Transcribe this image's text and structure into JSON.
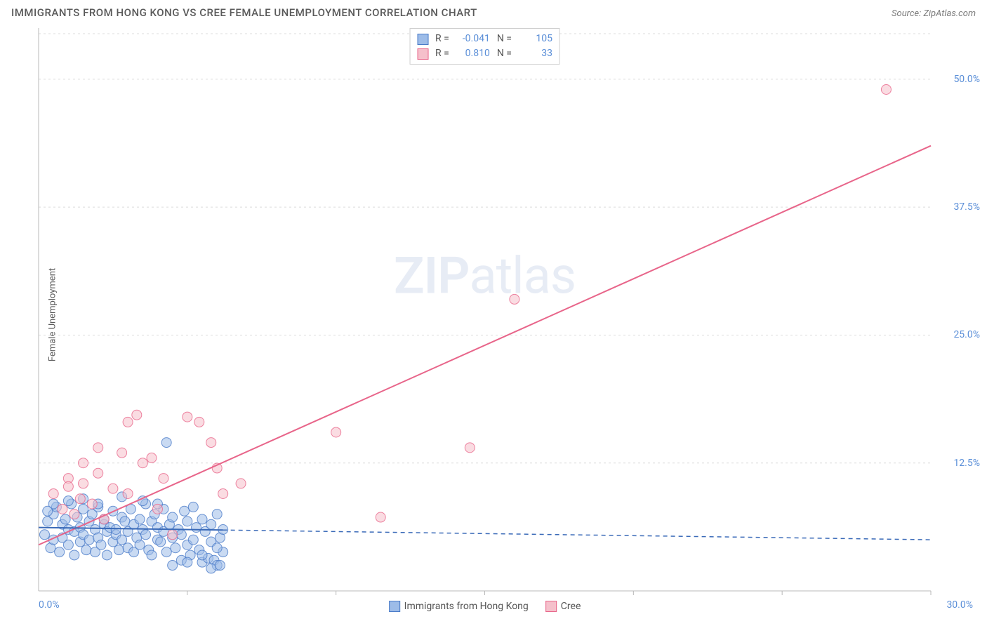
{
  "header": {
    "title": "IMMIGRANTS FROM HONG KONG VS CREE FEMALE UNEMPLOYMENT CORRELATION CHART",
    "source_prefix": "Source: ",
    "source": "ZipAtlas.com"
  },
  "chart": {
    "type": "scatter",
    "ylabel": "Female Unemployment",
    "xlim": [
      0,
      30
    ],
    "ylim": [
      0,
      55
    ],
    "xtick_labels": {
      "min": "0.0%",
      "max": "30.0%"
    },
    "ytick_positions": [
      12.5,
      25.0,
      37.5,
      50.0
    ],
    "ytick_labels": [
      "12.5%",
      "25.0%",
      "37.5%",
      "50.0%"
    ],
    "minor_xticks": [
      5,
      10,
      15,
      20,
      25,
      30
    ],
    "background_color": "#ffffff",
    "grid_color": "#dcdcdc",
    "axis_color": "#b8b8b8",
    "marker_radius": 7,
    "marker_opacity": 0.55,
    "line_width": 2,
    "dash_pattern": "6,5",
    "watermark": {
      "zip": "ZIP",
      "atlas": "atlas"
    },
    "series": {
      "blue": {
        "label": "Immigrants from Hong Kong",
        "fill_color": "#9dbce8",
        "stroke_color": "#4a7bc8",
        "line_color": "#3a6ab8",
        "trend": {
          "x1": 0,
          "y1": 6.2,
          "x2": 30,
          "y2": 5.0,
          "extrapolate_from_x": 6.2
        },
        "points": [
          [
            0.2,
            5.5
          ],
          [
            0.3,
            6.8
          ],
          [
            0.4,
            4.2
          ],
          [
            0.5,
            7.5
          ],
          [
            0.5,
            5.0
          ],
          [
            0.6,
            8.2
          ],
          [
            0.7,
            3.8
          ],
          [
            0.8,
            6.5
          ],
          [
            0.8,
            5.2
          ],
          [
            0.9,
            7.0
          ],
          [
            1.0,
            4.5
          ],
          [
            1.0,
            6.0
          ],
          [
            1.1,
            8.5
          ],
          [
            1.2,
            5.8
          ],
          [
            1.2,
            3.5
          ],
          [
            1.3,
            7.2
          ],
          [
            1.4,
            4.8
          ],
          [
            1.4,
            6.2
          ],
          [
            1.5,
            5.5
          ],
          [
            1.5,
            8.0
          ],
          [
            1.6,
            4.0
          ],
          [
            1.7,
            6.8
          ],
          [
            1.7,
            5.0
          ],
          [
            1.8,
            7.5
          ],
          [
            1.9,
            3.8
          ],
          [
            1.9,
            6.0
          ],
          [
            2.0,
            5.2
          ],
          [
            2.0,
            8.2
          ],
          [
            2.1,
            4.5
          ],
          [
            2.2,
            6.5
          ],
          [
            2.2,
            7.0
          ],
          [
            2.3,
            5.8
          ],
          [
            2.3,
            3.5
          ],
          [
            2.4,
            6.2
          ],
          [
            2.5,
            4.8
          ],
          [
            2.5,
            7.8
          ],
          [
            2.6,
            5.5
          ],
          [
            2.6,
            6.0
          ],
          [
            2.7,
            4.0
          ],
          [
            2.8,
            7.2
          ],
          [
            2.8,
            5.0
          ],
          [
            2.9,
            6.8
          ],
          [
            3.0,
            4.2
          ],
          [
            3.0,
            5.8
          ],
          [
            3.1,
            8.0
          ],
          [
            3.2,
            3.8
          ],
          [
            3.2,
            6.5
          ],
          [
            3.3,
            5.2
          ],
          [
            3.4,
            7.0
          ],
          [
            3.4,
            4.5
          ],
          [
            3.5,
            6.0
          ],
          [
            3.6,
            5.5
          ],
          [
            3.6,
            8.5
          ],
          [
            3.7,
            4.0
          ],
          [
            3.8,
            6.8
          ],
          [
            3.8,
            3.5
          ],
          [
            3.9,
            7.5
          ],
          [
            4.0,
            5.0
          ],
          [
            4.0,
            6.2
          ],
          [
            4.1,
            4.8
          ],
          [
            4.2,
            8.0
          ],
          [
            4.2,
            5.8
          ],
          [
            4.3,
            3.8
          ],
          [
            4.4,
            6.5
          ],
          [
            4.5,
            5.2
          ],
          [
            4.5,
            7.2
          ],
          [
            4.6,
            4.2
          ],
          [
            4.7,
            6.0
          ],
          [
            4.8,
            3.0
          ],
          [
            4.8,
            5.5
          ],
          [
            4.9,
            7.8
          ],
          [
            5.0,
            4.5
          ],
          [
            5.0,
            6.8
          ],
          [
            5.1,
            3.5
          ],
          [
            5.2,
            5.0
          ],
          [
            5.2,
            8.2
          ],
          [
            5.3,
            6.2
          ],
          [
            5.4,
            4.0
          ],
          [
            5.5,
            7.0
          ],
          [
            5.5,
            2.8
          ],
          [
            5.6,
            5.8
          ],
          [
            5.7,
            3.2
          ],
          [
            5.8,
            6.5
          ],
          [
            5.8,
            4.8
          ],
          [
            5.9,
            3.0
          ],
          [
            6.0,
            7.5
          ],
          [
            6.0,
            2.5
          ],
          [
            6.1,
            5.2
          ],
          [
            6.2,
            3.8
          ],
          [
            6.2,
            6.0
          ],
          [
            4.3,
            14.5
          ],
          [
            1.5,
            9.0
          ],
          [
            2.8,
            9.2
          ],
          [
            3.5,
            8.8
          ],
          [
            1.0,
            8.8
          ],
          [
            0.5,
            8.5
          ],
          [
            0.3,
            7.8
          ],
          [
            2.0,
            8.5
          ],
          [
            4.0,
            8.5
          ],
          [
            5.5,
            3.5
          ],
          [
            5.0,
            2.8
          ],
          [
            4.5,
            2.5
          ],
          [
            6.0,
            4.2
          ],
          [
            5.8,
            2.2
          ],
          [
            6.1,
            2.5
          ]
        ]
      },
      "pink": {
        "label": "Cree",
        "fill_color": "#f5c0cb",
        "stroke_color": "#e8658a",
        "line_color": "#e8658a",
        "trend": {
          "x1": 0,
          "y1": 4.5,
          "x2": 30,
          "y2": 43.5,
          "extrapolate_from_x": 30
        },
        "points": [
          [
            0.5,
            9.5
          ],
          [
            0.8,
            8.0
          ],
          [
            1.0,
            11.0
          ],
          [
            1.0,
            10.2
          ],
          [
            1.2,
            7.5
          ],
          [
            1.4,
            9.0
          ],
          [
            1.5,
            12.5
          ],
          [
            1.5,
            10.5
          ],
          [
            1.8,
            8.5
          ],
          [
            2.0,
            11.5
          ],
          [
            2.0,
            14.0
          ],
          [
            2.2,
            7.0
          ],
          [
            2.5,
            10.0
          ],
          [
            2.8,
            13.5
          ],
          [
            3.0,
            9.5
          ],
          [
            3.0,
            16.5
          ],
          [
            3.3,
            17.2
          ],
          [
            3.5,
            12.5
          ],
          [
            3.8,
            13.0
          ],
          [
            4.0,
            8.0
          ],
          [
            4.2,
            11.0
          ],
          [
            4.5,
            5.5
          ],
          [
            5.0,
            17.0
          ],
          [
            5.4,
            16.5
          ],
          [
            5.8,
            14.5
          ],
          [
            6.0,
            12.0
          ],
          [
            6.2,
            9.5
          ],
          [
            6.8,
            10.5
          ],
          [
            10.0,
            15.5
          ],
          [
            11.5,
            7.2
          ],
          [
            14.5,
            14.0
          ],
          [
            16.0,
            28.5
          ],
          [
            28.5,
            49.0
          ]
        ]
      }
    }
  },
  "stats": {
    "rows": [
      {
        "swatch_fill": "#9dbce8",
        "swatch_stroke": "#4a7bc8",
        "r_label": "R =",
        "r_value": "-0.041",
        "n_label": "N =",
        "n_value": "105"
      },
      {
        "swatch_fill": "#f5c0cb",
        "swatch_stroke": "#e8658a",
        "r_label": "R =",
        "r_value": "0.810",
        "n_label": "N =",
        "n_value": "33"
      }
    ]
  }
}
